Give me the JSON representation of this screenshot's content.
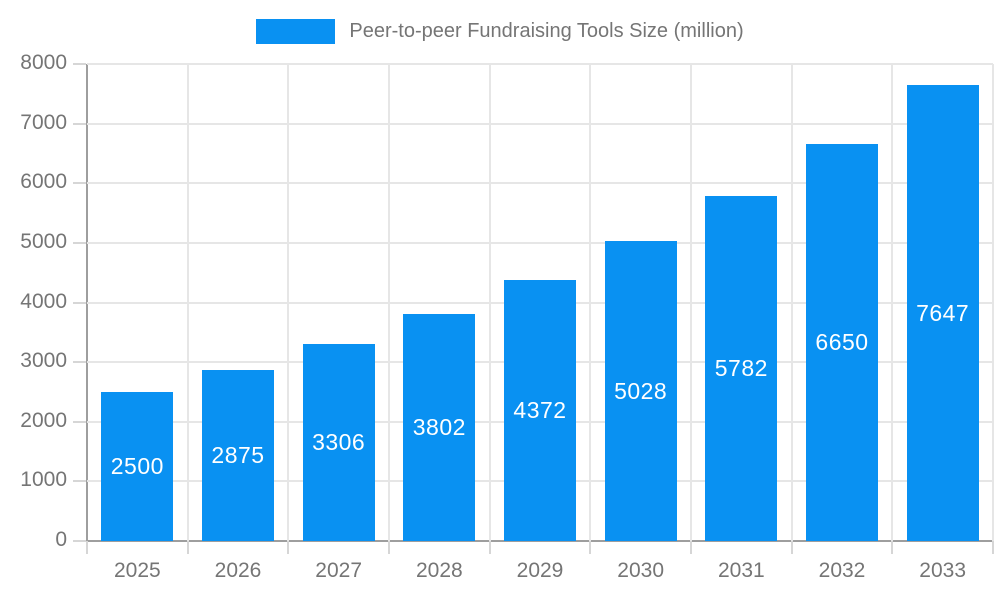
{
  "legend": {
    "title": "Peer-to-peer Fundraising Tools Size (million)"
  },
  "chart_data": {
    "type": "bar",
    "title": "Peer-to-peer Fundraising Tools Size (million)",
    "categories": [
      "2025",
      "2026",
      "2027",
      "2028",
      "2029",
      "2030",
      "2031",
      "2032",
      "2033"
    ],
    "values": [
      2500,
      2875,
      3306,
      3802,
      4372,
      5028,
      5782,
      6650,
      7647
    ],
    "xlabel": "",
    "ylabel": "",
    "ylim": [
      0,
      8000
    ],
    "ytick_step": 1000,
    "yticks": [
      0,
      1000,
      2000,
      3000,
      4000,
      5000,
      6000,
      7000,
      8000
    ],
    "grid": true,
    "legend_position": "top",
    "value_labels": "inside-center"
  },
  "colors": {
    "bar": "#0991f2",
    "bar_label": "#ffffff",
    "axis_text": "#757575",
    "grid_line": "#e6e6e6",
    "axis_line": "#9e9e9e",
    "background": "#ffffff"
  }
}
